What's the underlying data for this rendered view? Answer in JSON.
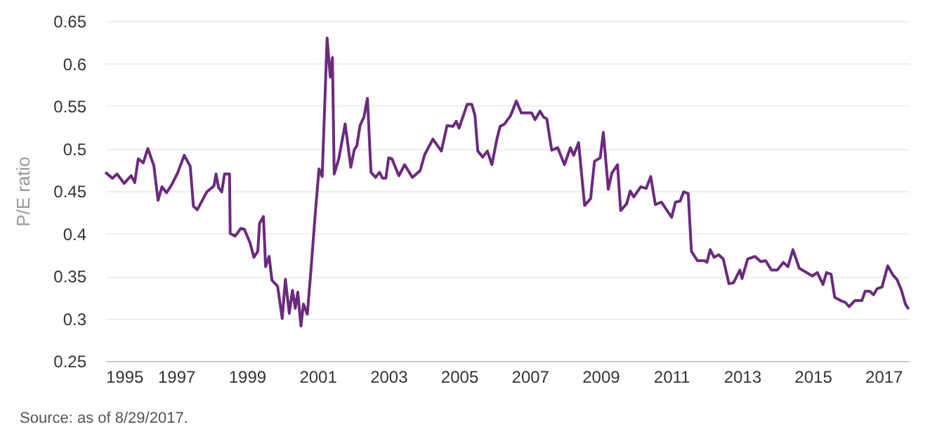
{
  "chart_data": {
    "type": "line",
    "ylabel": "P/E ratio",
    "x": [
      1995.0,
      1995.2,
      1995.33,
      1995.53,
      1995.73,
      1995.83,
      1995.93,
      1996.07,
      1996.2,
      1996.37,
      1996.49,
      1996.6,
      1996.73,
      1996.87,
      1997.04,
      1997.23,
      1997.4,
      1997.49,
      1997.6,
      1997.87,
      1998.07,
      1998.13,
      1998.2,
      1998.29,
      1998.37,
      1998.51,
      1998.53,
      1998.67,
      1998.83,
      1998.93,
      1999.09,
      1999.2,
      1999.31,
      1999.36,
      1999.47,
      1999.53,
      1999.63,
      1999.71,
      1999.87,
      2000.0,
      2000.09,
      2000.2,
      2000.29,
      2000.37,
      2000.44,
      2000.53,
      2000.6,
      2000.71,
      2000.8,
      2000.93,
      2001.04,
      2001.13,
      2001.27,
      2001.36,
      2001.42,
      2001.47,
      2001.6,
      2001.78,
      2001.94,
      2002.04,
      2002.11,
      2002.2,
      2002.31,
      2002.41,
      2002.51,
      2002.64,
      2002.75,
      2002.84,
      2002.93,
      2003.01,
      2003.1,
      2003.3,
      2003.46,
      2003.68,
      2003.9,
      2004.03,
      2004.26,
      2004.5,
      2004.66,
      2004.83,
      2004.92,
      2005.0,
      2005.23,
      2005.36,
      2005.45,
      2005.53,
      2005.67,
      2005.8,
      2005.93,
      2006.07,
      2006.16,
      2006.29,
      2006.46,
      2006.62,
      2006.76,
      2006.89,
      2007.05,
      2007.15,
      2007.29,
      2007.39,
      2007.48,
      2007.62,
      2007.79,
      2007.98,
      2008.15,
      2008.24,
      2008.38,
      2008.55,
      2008.72,
      2008.83,
      2008.99,
      2009.08,
      2009.22,
      2009.32,
      2009.48,
      2009.57,
      2009.74,
      2009.84,
      2009.94,
      2010.14,
      2010.29,
      2010.42,
      2010.55,
      2010.72,
      2011.01,
      2011.12,
      2011.25,
      2011.35,
      2011.48,
      2011.57,
      2011.74,
      2011.94,
      2012.01,
      2012.1,
      2012.21,
      2012.34,
      2012.47,
      2012.63,
      2012.76,
      2012.94,
      2013.0,
      2013.16,
      2013.37,
      2013.53,
      2013.67,
      2013.83,
      2014.0,
      2014.17,
      2014.3,
      2014.44,
      2014.62,
      2014.83,
      2014.99,
      2015.13,
      2015.29,
      2015.39,
      2015.52,
      2015.62,
      2015.79,
      2015.92,
      2016.03,
      2016.19,
      2016.39,
      2016.48,
      2016.61,
      2016.72,
      2016.82,
      2016.96,
      2017.12,
      2017.27,
      2017.38,
      2017.51,
      2017.62,
      2017.71
    ],
    "series": [
      {
        "color": "#6b2a7f",
        "values": [
          0.472,
          0.465,
          0.47,
          0.459,
          0.468,
          0.46,
          0.488,
          0.483,
          0.5,
          0.48,
          0.439,
          0.455,
          0.448,
          0.457,
          0.471,
          0.492,
          0.479,
          0.432,
          0.428,
          0.449,
          0.456,
          0.47,
          0.454,
          0.449,
          0.47,
          0.47,
          0.4,
          0.397,
          0.406,
          0.405,
          0.389,
          0.372,
          0.379,
          0.412,
          0.42,
          0.361,
          0.373,
          0.345,
          0.338,
          0.3,
          0.346,
          0.306,
          0.333,
          0.312,
          0.331,
          0.291,
          0.317,
          0.305,
          0.35,
          0.421,
          0.476,
          0.467,
          0.63,
          0.584,
          0.607,
          0.47,
          0.488,
          0.529,
          0.478,
          0.499,
          0.503,
          0.527,
          0.537,
          0.559,
          0.472,
          0.466,
          0.472,
          0.465,
          0.465,
          0.489,
          0.488,
          0.468,
          0.481,
          0.466,
          0.474,
          0.493,
          0.511,
          0.497,
          0.527,
          0.526,
          0.532,
          0.524,
          0.552,
          0.552,
          0.539,
          0.497,
          0.49,
          0.497,
          0.481,
          0.511,
          0.526,
          0.529,
          0.539,
          0.556,
          0.542,
          0.542,
          0.542,
          0.534,
          0.544,
          0.537,
          0.535,
          0.498,
          0.501,
          0.481,
          0.501,
          0.492,
          0.507,
          0.433,
          0.441,
          0.485,
          0.489,
          0.519,
          0.452,
          0.471,
          0.481,
          0.427,
          0.435,
          0.45,
          0.443,
          0.455,
          0.453,
          0.467,
          0.434,
          0.437,
          0.419,
          0.437,
          0.438,
          0.449,
          0.447,
          0.379,
          0.368,
          0.368,
          0.366,
          0.381,
          0.372,
          0.375,
          0.37,
          0.341,
          0.342,
          0.357,
          0.347,
          0.37,
          0.373,
          0.367,
          0.368,
          0.357,
          0.357,
          0.366,
          0.361,
          0.381,
          0.359,
          0.354,
          0.35,
          0.354,
          0.34,
          0.354,
          0.352,
          0.325,
          0.321,
          0.319,
          0.314,
          0.321,
          0.321,
          0.332,
          0.332,
          0.328,
          0.335,
          0.337,
          0.362,
          0.351,
          0.346,
          0.333,
          0.317,
          0.311
        ]
      }
    ],
    "xlim": [
      1995,
      2017.72
    ],
    "xticks": [
      1995,
      1997,
      1999,
      2001,
      2003,
      2005,
      2007,
      2009,
      2011,
      2013,
      2015,
      2017
    ],
    "ylim": [
      0.25,
      0.65
    ],
    "yticks": [
      0.25,
      0.3,
      0.35,
      0.4,
      0.45,
      0.5,
      0.55,
      0.6,
      0.65
    ],
    "grid": "y",
    "annotations": [
      "Source: as of 8/29/2017."
    ]
  }
}
